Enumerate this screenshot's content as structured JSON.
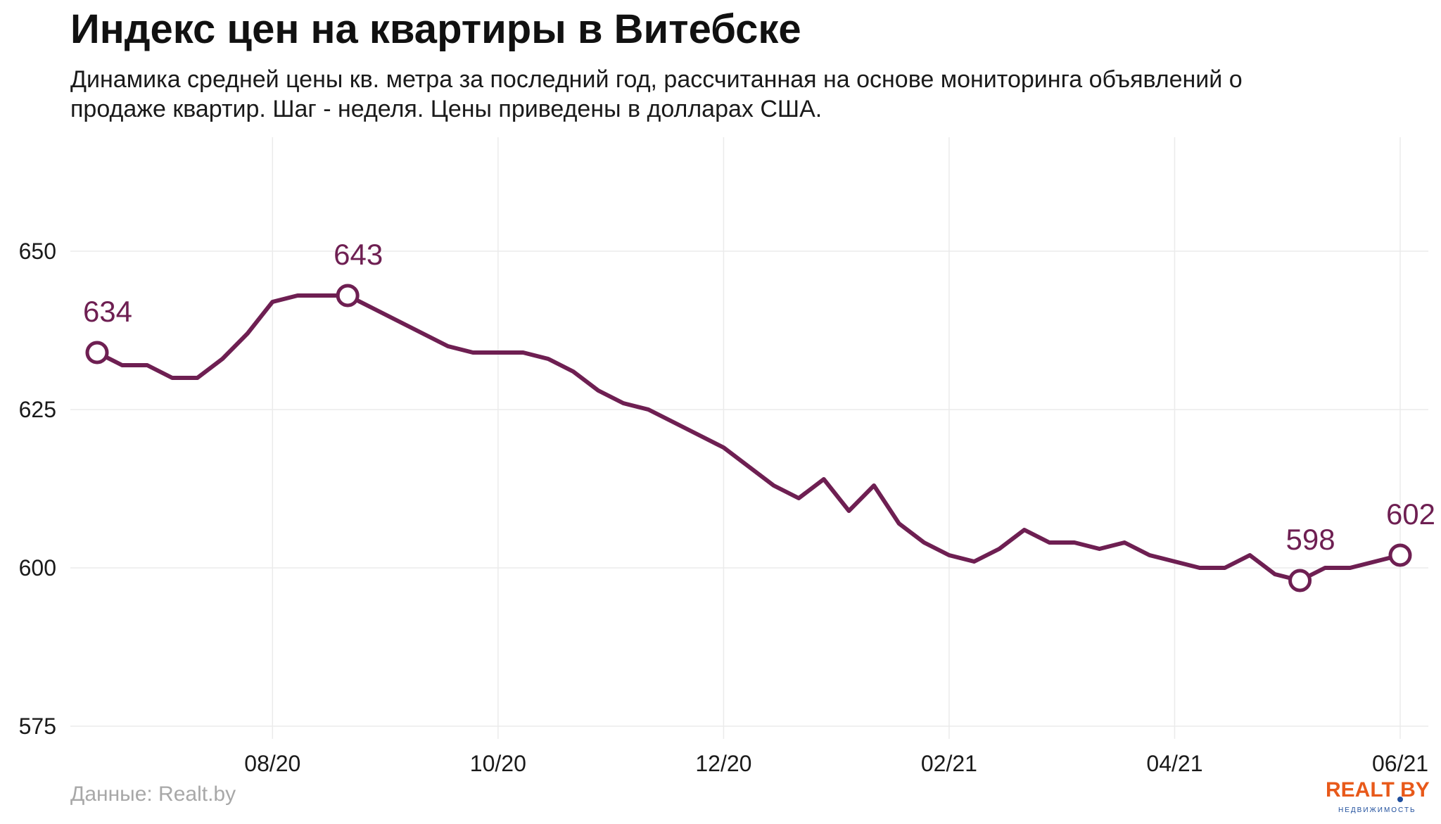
{
  "title": "Индекс цен на квартиры в Витебске",
  "subtitle": "Динамика средней цены кв. метра за последний год, рассчитанная на основе мониторинга объявлений о продаже квартир. Шаг - неделя. Цены приведены в долларах США.",
  "source": "Данные: Realt.by",
  "logo": {
    "text": "REALT BY",
    "sub": "НЕДВИЖИМОСТЬ"
  },
  "colors": {
    "line": "#6e1f52",
    "grid": "#ebebeb",
    "logo": "#e8591a"
  },
  "chart_data": {
    "type": "line",
    "title": "Индекс цен на квартиры в Витебске",
    "xlabel": "",
    "ylabel": "",
    "ylim": [
      573,
      668
    ],
    "y_ticks": [
      575,
      600,
      625,
      650
    ],
    "x_tick_labels": [
      "08/20",
      "10/20",
      "12/20",
      "02/21",
      "04/21",
      "06/21"
    ],
    "x_tick_weeks": [
      7,
      16,
      25,
      34,
      43,
      52
    ],
    "grid": true,
    "series": [
      {
        "values": [
          634,
          632,
          632,
          630,
          630,
          633,
          637,
          642,
          643,
          643,
          643,
          641,
          639,
          637,
          635,
          634,
          634,
          634,
          633,
          631,
          628,
          626,
          625,
          623,
          621,
          619,
          616,
          613,
          611,
          614,
          609,
          613,
          607,
          604,
          602,
          601,
          603,
          606,
          604,
          604,
          603,
          604,
          602,
          601,
          600,
          600,
          602,
          599,
          598,
          600,
          600,
          601,
          602
        ]
      }
    ],
    "annotations": [
      {
        "label": "634",
        "week": 0,
        "value": 634
      },
      {
        "label": "643",
        "week": 10,
        "value": 643
      },
      {
        "label": "598",
        "week": 48,
        "value": 598
      },
      {
        "label": "602",
        "week": 52,
        "value": 602
      }
    ]
  }
}
